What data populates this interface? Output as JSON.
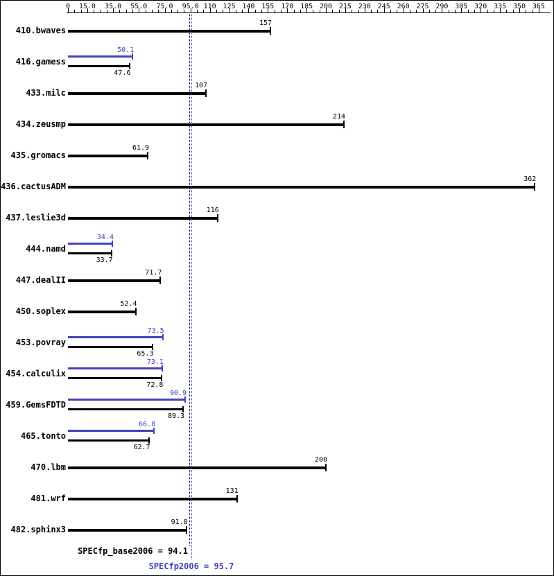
{
  "chart_data": {
    "type": "bar",
    "orientation": "horizontal",
    "title": "",
    "xlabel": "",
    "ylabel": "",
    "xlim": [
      0,
      365
    ],
    "axis_tick_step": 5,
    "grid": false,
    "legend_position": "none",
    "axis_labels": [
      {
        "value": 0,
        "text": "0"
      },
      {
        "value": 15,
        "text": "15.0"
      },
      {
        "value": 35,
        "text": "35.0"
      },
      {
        "value": 55,
        "text": "55.0"
      },
      {
        "value": 75,
        "text": "75.0"
      },
      {
        "value": 95,
        "text": "95.0"
      },
      {
        "value": 110,
        "text": "110"
      },
      {
        "value": 125,
        "text": "125"
      },
      {
        "value": 140,
        "text": "140"
      },
      {
        "value": 155,
        "text": "155"
      },
      {
        "value": 170,
        "text": "170"
      },
      {
        "value": 185,
        "text": "185"
      },
      {
        "value": 200,
        "text": "200"
      },
      {
        "value": 215,
        "text": "215"
      },
      {
        "value": 230,
        "text": "230"
      },
      {
        "value": 245,
        "text": "245"
      },
      {
        "value": 260,
        "text": "260"
      },
      {
        "value": 275,
        "text": "275"
      },
      {
        "value": 290,
        "text": "290"
      },
      {
        "value": 305,
        "text": "305"
      },
      {
        "value": 320,
        "text": "320"
      },
      {
        "value": 335,
        "text": "335"
      },
      {
        "value": 350,
        "text": "350"
      },
      {
        "value": 365,
        "text": "365"
      }
    ],
    "benchmarks": [
      {
        "name": "410.bwaves",
        "base": 157,
        "base_label": "157"
      },
      {
        "name": "416.gamess",
        "peak": 50.1,
        "peak_label": "50.1",
        "base": 47.6,
        "base_label": "47.6"
      },
      {
        "name": "433.milc",
        "base": 107,
        "base_label": "107"
      },
      {
        "name": "434.zeusmp",
        "base": 214,
        "base_label": "214"
      },
      {
        "name": "435.gromacs",
        "base": 61.9,
        "base_label": "61.9"
      },
      {
        "name": "436.cactusADM",
        "base": 362,
        "base_label": "362"
      },
      {
        "name": "437.leslie3d",
        "base": 116,
        "base_label": "116"
      },
      {
        "name": "444.namd",
        "peak": 34.4,
        "peak_label": "34.4",
        "base": 33.7,
        "base_label": "33.7"
      },
      {
        "name": "447.dealII",
        "base": 71.7,
        "base_label": "71.7"
      },
      {
        "name": "450.soplex",
        "base": 52.4,
        "base_label": "52.4"
      },
      {
        "name": "453.povray",
        "peak": 73.5,
        "peak_label": "73.5",
        "base": 65.3,
        "base_label": "65.3"
      },
      {
        "name": "454.calculix",
        "peak": 73.1,
        "peak_label": "73.1",
        "base": 72.8,
        "base_label": "72.8"
      },
      {
        "name": "459.GemsFDTD",
        "peak": 90.9,
        "peak_label": "90.9",
        "base": 89.3,
        "base_label": "89.3"
      },
      {
        "name": "465.tonto",
        "peak": 66.8,
        "peak_label": "66.8",
        "base": 62.7,
        "base_label": "62.7"
      },
      {
        "name": "470.lbm",
        "base": 200,
        "base_label": "200"
      },
      {
        "name": "481.wrf",
        "base": 131,
        "base_label": "131"
      },
      {
        "name": "482.sphinx3",
        "base": 91.8,
        "base_label": "91.8"
      }
    ],
    "base_mean": {
      "label": "SPECfp_base2006 = 94.1",
      "value": 94.1
    },
    "peak_mean": {
      "label": "SPECfp2006 = 95.7",
      "value": 95.7
    },
    "colors": {
      "base": "#000000",
      "peak": "#4040c0",
      "background": "#ffffff"
    }
  }
}
